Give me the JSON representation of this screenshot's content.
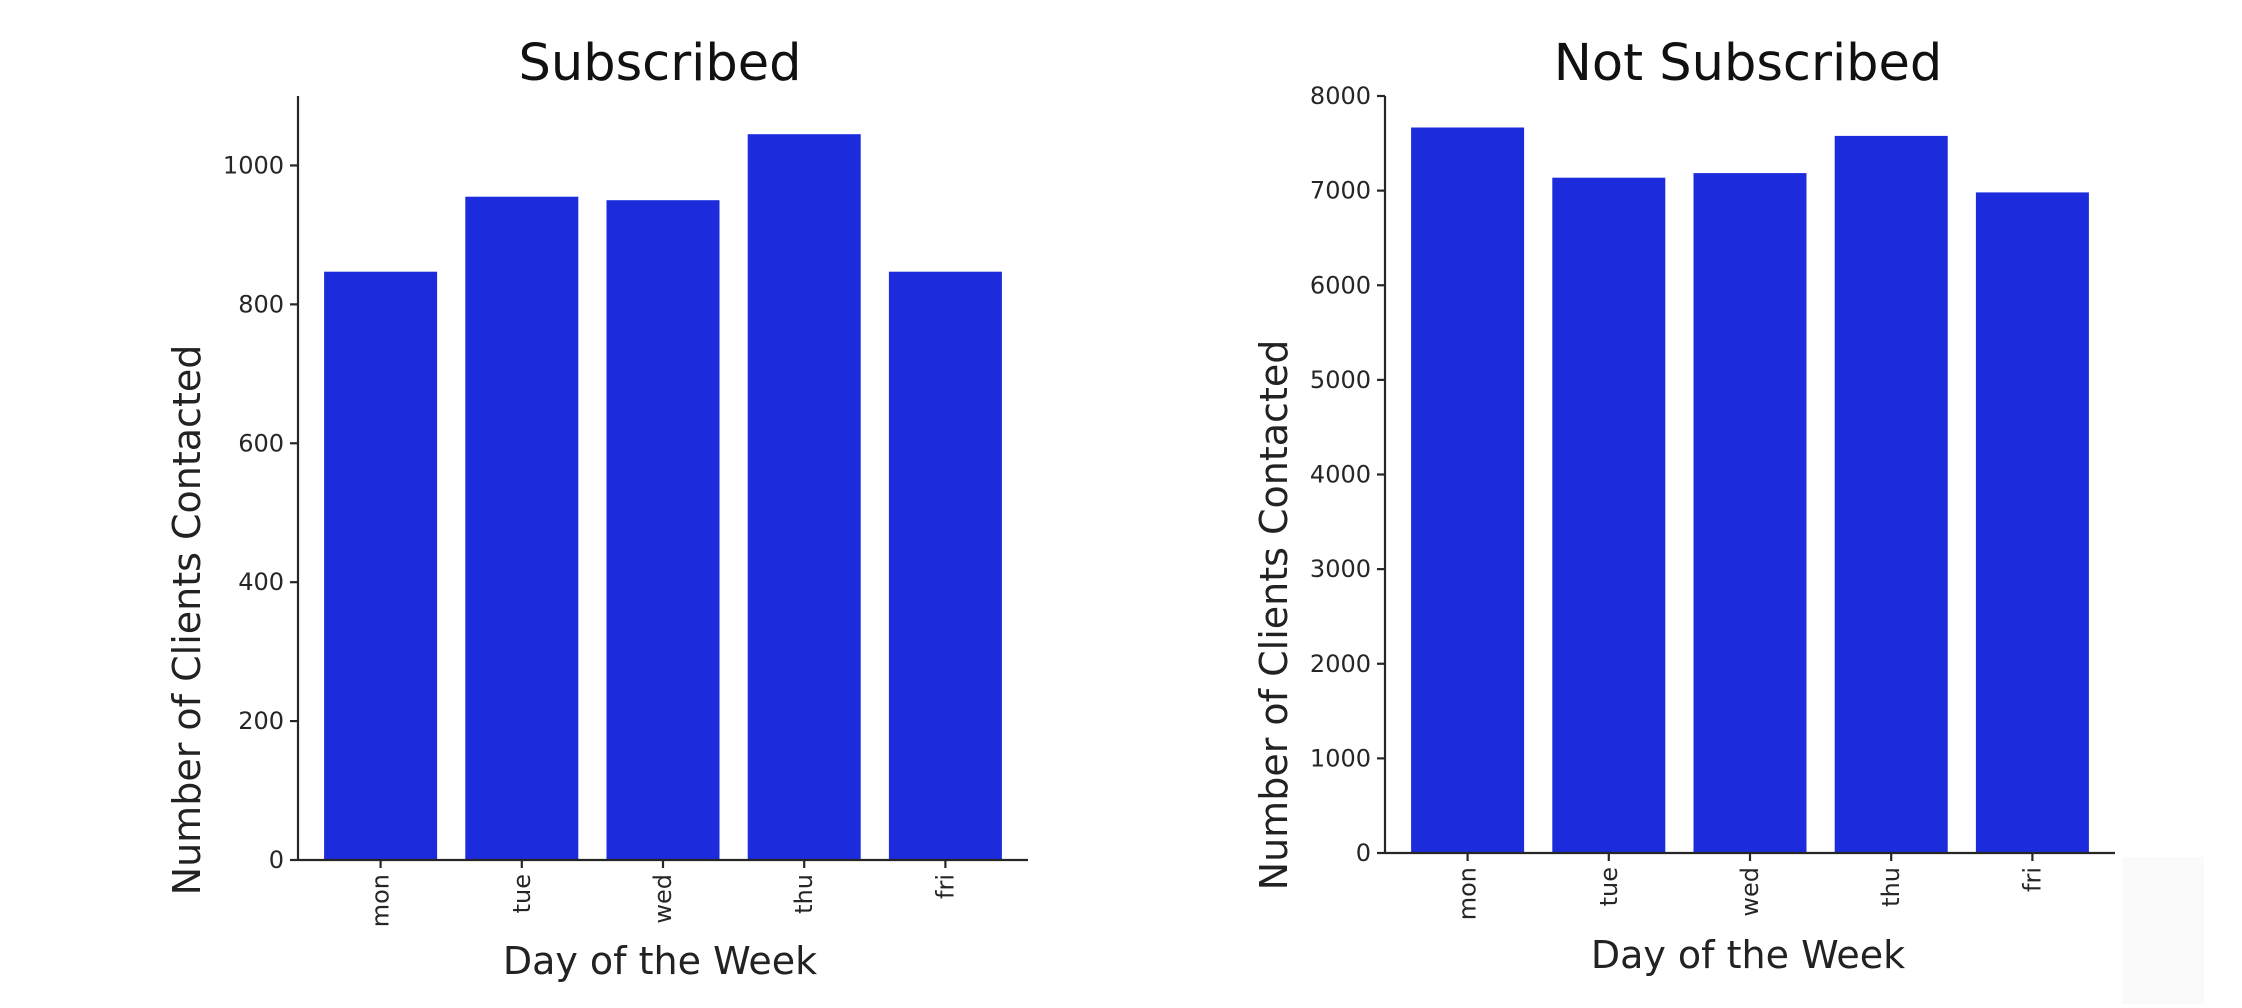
{
  "chart_data": [
    {
      "type": "bar",
      "title": "Subscribed",
      "xlabel": "Day of the Week",
      "ylabel": "Number of Clients Contacted",
      "categories": [
        "mon",
        "tue",
        "wed",
        "thu",
        "fri"
      ],
      "values": [
        847,
        955,
        950,
        1045,
        847
      ],
      "ylim": [
        0,
        1100
      ],
      "yticks": [
        "0",
        "200",
        "400",
        "600",
        "800",
        "1000"
      ],
      "bar_color": "#1c2bdb",
      "grid": false
    },
    {
      "type": "bar",
      "title": "Not Subscribed",
      "xlabel": "Day of the Week",
      "ylabel": "Number of Clients Contacted",
      "categories": [
        "mon",
        "tue",
        "wed",
        "thu",
        "fri"
      ],
      "values": [
        7667,
        7137,
        7185,
        7578,
        6981
      ],
      "ylim": [
        0,
        8000
      ],
      "yticks": [
        "0",
        "1000",
        "2000",
        "3000",
        "4000",
        "5000",
        "6000",
        "7000",
        "8000"
      ],
      "bar_color": "#1c2bdb",
      "grid": false
    }
  ]
}
